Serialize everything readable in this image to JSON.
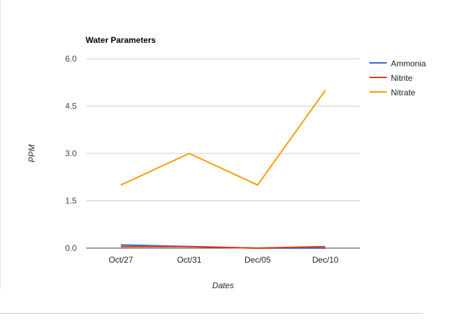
{
  "chart_data": {
    "type": "line",
    "title": "Water Parameters",
    "xlabel": "Dates",
    "ylabel": "PPM",
    "categories": [
      "Oct/27",
      "Oct/31",
      "Dec/05",
      "Dec/10"
    ],
    "ylim": [
      0,
      6
    ],
    "yticks": [
      "0.0",
      "1.5",
      "3.0",
      "4.5",
      "6.0"
    ],
    "grid": true,
    "legend_position": "right",
    "series": [
      {
        "name": "Ammonia",
        "color": "#3366cc",
        "values": [
          0.1,
          0.05,
          0.0,
          0.0
        ]
      },
      {
        "name": "Nitrite",
        "color": "#dc3912",
        "values": [
          0.05,
          0.05,
          0.0,
          0.05
        ]
      },
      {
        "name": "Nitrate",
        "color": "#ff9900",
        "values": [
          2.0,
          3.0,
          2.0,
          5.0
        ]
      }
    ]
  }
}
